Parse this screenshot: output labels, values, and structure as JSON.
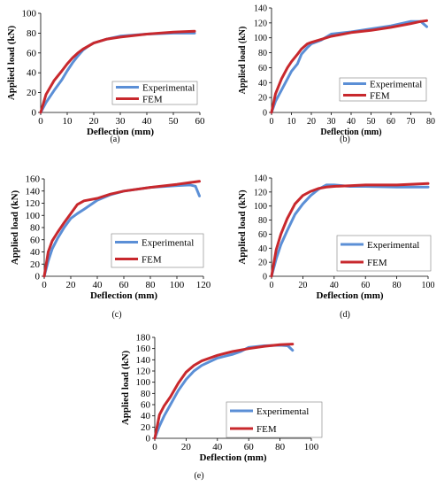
{
  "colors": {
    "experimental": "#5B8FD6",
    "fem": "#C8282D",
    "axis": "#000000",
    "legend_border": "#7F7F7F"
  },
  "chart_data": [
    {
      "type": "line",
      "caption": "(a)",
      "xlabel": "Deflection (mm)",
      "ylabel": "Applied load (kN)",
      "xlim": [
        0,
        60
      ],
      "ylim": [
        0,
        100
      ],
      "xticks": [
        0,
        10,
        20,
        30,
        40,
        50,
        60
      ],
      "yticks": [
        0,
        20,
        40,
        60,
        80,
        100
      ],
      "grid": false,
      "legend": "bottom-right",
      "series": [
        {
          "name": "Experimental",
          "color": "#5B8FD6",
          "x": [
            0,
            2,
            5,
            8,
            10,
            12,
            14,
            16,
            18,
            20,
            25,
            30,
            40,
            50,
            58
          ],
          "y": [
            0,
            10,
            22,
            33,
            42,
            50,
            57,
            63,
            67,
            70,
            74,
            77,
            79,
            80,
            80
          ]
        },
        {
          "name": "FEM",
          "color": "#C8282D",
          "x": [
            0,
            2,
            5,
            8,
            10,
            12,
            14,
            16,
            18,
            20,
            25,
            30,
            40,
            50,
            58
          ],
          "y": [
            0,
            18,
            32,
            42,
            49,
            55,
            60,
            64,
            67,
            70,
            74,
            76,
            79,
            81,
            82
          ]
        }
      ]
    },
    {
      "type": "line",
      "caption": "(b)",
      "xlabel": "Deflection (mm)",
      "ylabel": "Applied load (kN)",
      "xlim": [
        0,
        80
      ],
      "ylim": [
        0,
        140
      ],
      "xticks": [
        0,
        10,
        20,
        30,
        40,
        50,
        60,
        70,
        80
      ],
      "yticks": [
        0,
        20,
        40,
        60,
        80,
        100,
        120,
        140
      ],
      "grid": false,
      "legend": "bottom-right",
      "series": [
        {
          "name": "Experimental",
          "color": "#5B8FD6",
          "x": [
            0,
            2,
            5,
            8,
            10,
            13,
            15,
            18,
            20,
            25,
            30,
            40,
            50,
            60,
            70,
            75,
            78
          ],
          "y": [
            0,
            15,
            30,
            45,
            55,
            65,
            78,
            87,
            92,
            97,
            105,
            108,
            112,
            116,
            122,
            122,
            115
          ]
        },
        {
          "name": "FEM",
          "color": "#C8282D",
          "x": [
            0,
            2,
            5,
            8,
            10,
            13,
            15,
            18,
            20,
            25,
            30,
            40,
            50,
            60,
            70,
            75,
            78
          ],
          "y": [
            0,
            25,
            45,
            60,
            68,
            78,
            85,
            92,
            94,
            98,
            102,
            107,
            110,
            114,
            119,
            122,
            123
          ]
        }
      ]
    },
    {
      "type": "line",
      "caption": "(c)",
      "xlabel": "Deflection (mm)",
      "ylabel": "Applied load (kN)",
      "xlim": [
        0,
        120
      ],
      "ylim": [
        0,
        160
      ],
      "xticks": [
        0,
        20,
        40,
        60,
        80,
        100,
        120
      ],
      "yticks": [
        0,
        20,
        40,
        60,
        80,
        100,
        120,
        140,
        160
      ],
      "grid": false,
      "legend": "bottom-right",
      "series": [
        {
          "name": "Experimental",
          "color": "#5B8FD6",
          "x": [
            0,
            3,
            6,
            10,
            15,
            20,
            25,
            30,
            40,
            50,
            60,
            80,
            100,
            110,
            114,
            117
          ],
          "y": [
            0,
            25,
            45,
            62,
            80,
            95,
            103,
            110,
            125,
            134,
            140,
            146,
            149,
            150,
            148,
            132
          ]
        },
        {
          "name": "FEM",
          "color": "#C8282D",
          "x": [
            0,
            3,
            6,
            10,
            15,
            20,
            25,
            30,
            40,
            50,
            60,
            80,
            100,
            110,
            117
          ],
          "y": [
            0,
            40,
            58,
            72,
            88,
            103,
            118,
            124,
            128,
            135,
            140,
            146,
            151,
            154,
            156
          ]
        }
      ]
    },
    {
      "type": "line",
      "caption": "(d)",
      "xlabel": "Deflection (mm)",
      "ylabel": "Applied load (kN)",
      "xlim": [
        0,
        100
      ],
      "ylim": [
        0,
        140
      ],
      "xticks": [
        0,
        20,
        40,
        60,
        80,
        100
      ],
      "yticks": [
        0,
        20,
        40,
        60,
        80,
        100,
        120,
        140
      ],
      "grid": false,
      "legend": "bottom-right",
      "series": [
        {
          "name": "Experimental",
          "color": "#5B8FD6",
          "x": [
            0,
            3,
            6,
            10,
            15,
            20,
            25,
            30,
            35,
            40,
            50,
            60,
            80,
            100
          ],
          "y": [
            0,
            25,
            45,
            65,
            88,
            103,
            115,
            124,
            130,
            130,
            128,
            128,
            127,
            127
          ]
        },
        {
          "name": "FEM",
          "color": "#C8282D",
          "x": [
            0,
            3,
            6,
            10,
            15,
            20,
            25,
            30,
            35,
            40,
            50,
            60,
            80,
            100
          ],
          "y": [
            0,
            38,
            60,
            82,
            103,
            115,
            121,
            125,
            127,
            128,
            129,
            130,
            130,
            132
          ]
        }
      ]
    },
    {
      "type": "line",
      "caption": "(e)",
      "xlabel": "Deflection (mm)",
      "ylabel": "Applied load (kN)",
      "xlim": [
        0,
        100
      ],
      "ylim": [
        0,
        180
      ],
      "xticks": [
        0,
        20,
        40,
        60,
        80,
        100
      ],
      "yticks": [
        0,
        20,
        40,
        60,
        80,
        100,
        120,
        140,
        160,
        180
      ],
      "grid": false,
      "legend": "bottom-right",
      "series": [
        {
          "name": "Experimental",
          "color": "#5B8FD6",
          "x": [
            0,
            3,
            6,
            10,
            15,
            20,
            25,
            30,
            40,
            50,
            55,
            60,
            70,
            80,
            85,
            88
          ],
          "y": [
            0,
            22,
            40,
            60,
            85,
            105,
            120,
            130,
            143,
            150,
            155,
            162,
            165,
            166,
            165,
            157
          ]
        },
        {
          "name": "FEM",
          "color": "#C8282D",
          "x": [
            0,
            3,
            6,
            10,
            15,
            20,
            25,
            30,
            40,
            50,
            60,
            70,
            80,
            88
          ],
          "y": [
            0,
            42,
            58,
            74,
            98,
            118,
            130,
            138,
            148,
            155,
            160,
            164,
            167,
            168
          ]
        }
      ]
    }
  ]
}
